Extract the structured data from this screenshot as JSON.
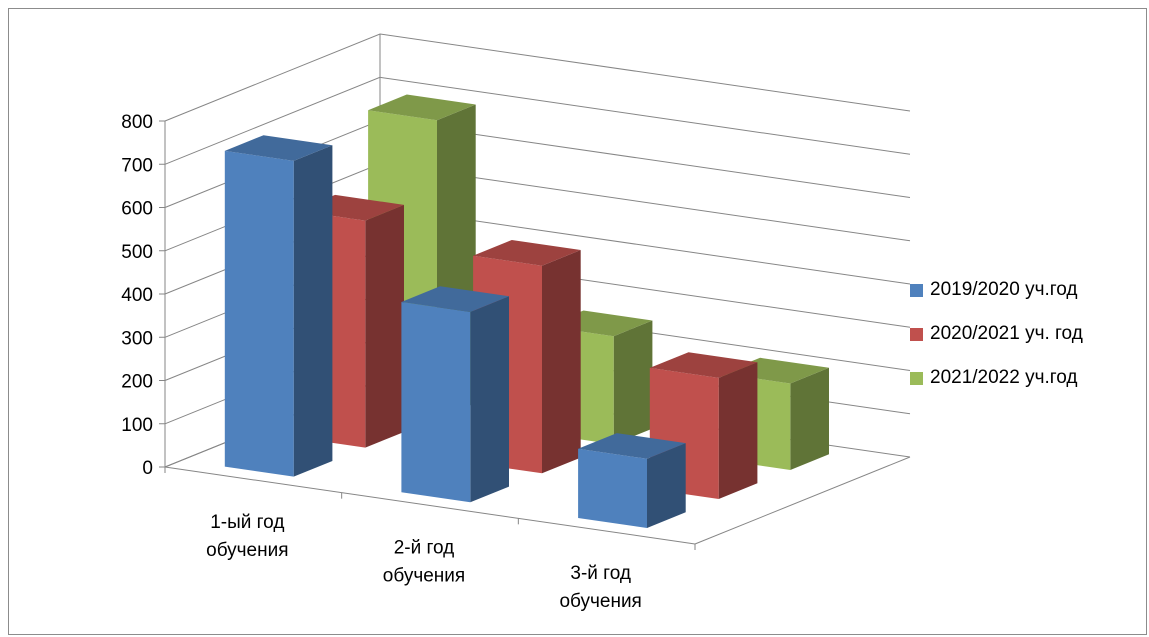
{
  "chart_data": {
    "type": "bar",
    "subtype": "3d-column",
    "categories": [
      "1-ый год обучения",
      "2-й год обучения",
      "3-й год обучения"
    ],
    "category_lines": [
      [
        "1-ый год",
        "обучения"
      ],
      [
        "2-й год",
        "обучения"
      ],
      [
        "3-й год",
        "обучения"
      ]
    ],
    "series": [
      {
        "name": "2019/2020 уч.год",
        "values": [
          730,
          440,
          160
        ],
        "color": "#4f81bd"
      },
      {
        "name": "2020/2021 уч. год",
        "values": [
          525,
          480,
          280
        ],
        "color": "#c0504d"
      },
      {
        "name": "2021/2022 уч.год",
        "values": [
          690,
          250,
          200
        ],
        "color": "#9bbb59"
      }
    ],
    "ylim": [
      0,
      800
    ],
    "yticks": [
      0,
      100,
      200,
      300,
      400,
      500,
      600,
      700,
      800
    ],
    "grid": true,
    "legend_position": "right"
  }
}
